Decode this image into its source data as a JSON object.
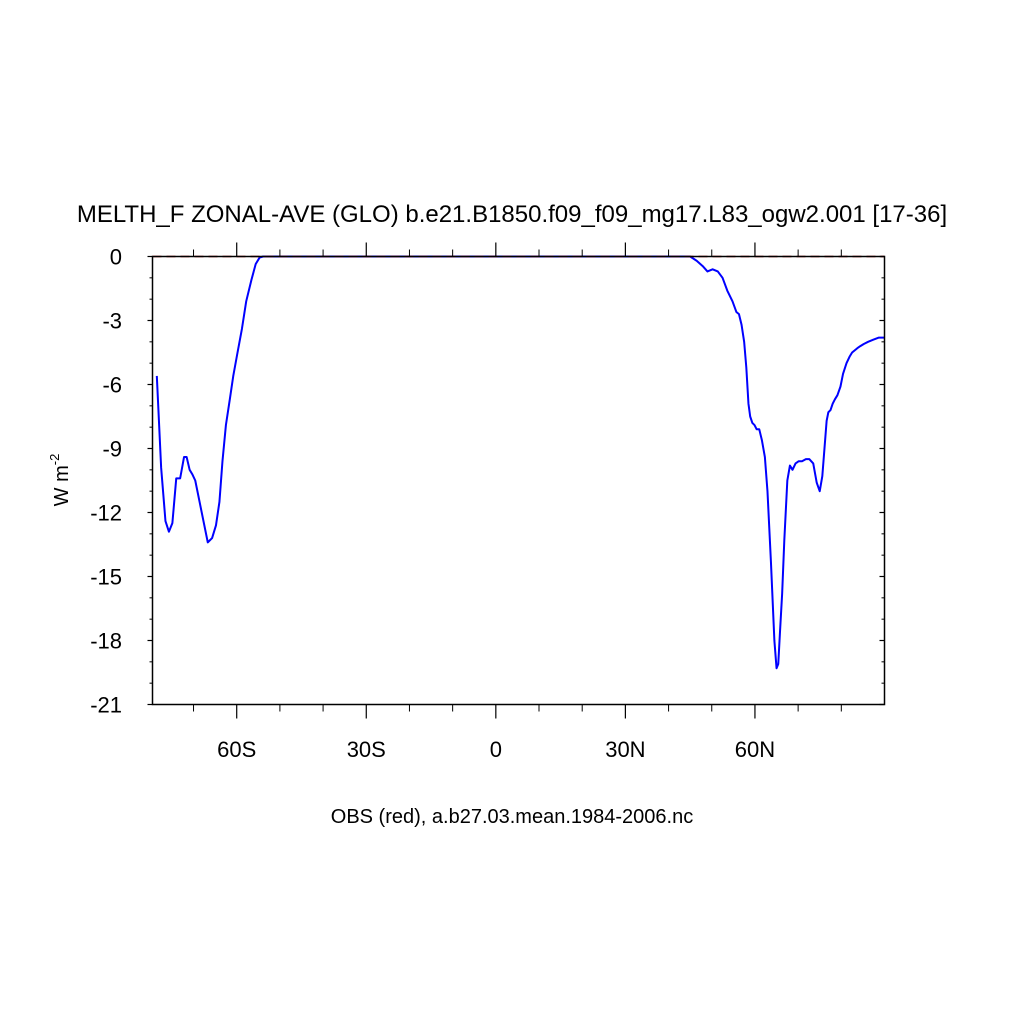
{
  "chart_data": {
    "type": "line",
    "title": "MELTH_F ZONAL-AVE (GLO) b.e21.B1850.f09_f09_mg17.L83_ogw2.001 [17-36]",
    "xlabel": "OBS (red), a.b27.03.mean.1984-2006.nc",
    "ylabel": "W m",
    "ylabel_superscript": "-2",
    "xlim": [
      -79.5,
      90
    ],
    "ylim": [
      -21,
      0
    ],
    "x_ticks": [
      {
        "value": -60,
        "label": "60S"
      },
      {
        "value": -30,
        "label": "30S"
      },
      {
        "value": 0,
        "label": "0"
      },
      {
        "value": 30,
        "label": "30N"
      },
      {
        "value": 60,
        "label": "60N"
      }
    ],
    "y_ticks": [
      {
        "value": 0,
        "label": "0"
      },
      {
        "value": -3,
        "label": "-3"
      },
      {
        "value": -6,
        "label": "-6"
      },
      {
        "value": -9,
        "label": "-9"
      },
      {
        "value": -12,
        "label": "-12"
      },
      {
        "value": -15,
        "label": "-15"
      },
      {
        "value": -18,
        "label": "-18"
      },
      {
        "value": -21,
        "label": "-21"
      }
    ],
    "series": [
      {
        "color": "#0000ff",
        "dashed": false,
        "x": [
          -78.5,
          -77.5,
          -76.5,
          -75.7,
          -74.9,
          -74.0,
          -73.1,
          -72.2,
          -71.6,
          -70.9,
          -70.3,
          -69.6,
          -68.5,
          -67.8,
          -66.7,
          -65.7,
          -64.8,
          -64.0,
          -63.3,
          -62.5,
          -61.6,
          -60.8,
          -59.9,
          -58.8,
          -57.8,
          -56.6,
          -55.6,
          -54.7,
          -53.9,
          -53.0,
          -52.0,
          -50.0,
          -40.0,
          -20.0,
          0.0,
          20.0,
          40.0,
          45.0,
          46.5,
          47.9,
          49.0,
          50.2,
          51.4,
          52.5,
          53.6,
          54.8,
          55.7,
          56.3,
          56.9,
          57.5,
          58.0,
          58.5,
          58.9,
          59.4,
          59.9,
          60.4,
          61.0,
          61.6,
          62.3,
          62.9,
          63.7,
          64.5,
          65.0,
          65.4,
          65.8,
          66.3,
          66.8,
          67.5,
          68.1,
          68.7,
          69.4,
          70.1,
          70.9,
          71.8,
          72.6,
          73.5,
          74.3,
          75.0,
          75.6,
          76.1,
          76.6,
          77.0,
          77.5,
          78.0,
          78.5,
          79.1,
          79.8,
          80.4,
          81.2,
          81.9,
          82.5,
          83.1,
          83.7,
          84.4,
          85.2,
          86.2,
          87.4,
          88.7,
          90.0
        ],
        "y": [
          -5.6,
          -9.9,
          -12.4,
          -12.9,
          -12.5,
          -10.4,
          -10.4,
          -9.4,
          -9.4,
          -10.0,
          -10.2,
          -10.5,
          -11.6,
          -12.3,
          -13.4,
          -13.2,
          -12.6,
          -11.5,
          -9.6,
          -7.9,
          -6.7,
          -5.6,
          -4.6,
          -3.4,
          -2.1,
          -1.1,
          -0.35,
          -0.05,
          0,
          0,
          0,
          0,
          0,
          0,
          0,
          0,
          0,
          0,
          -0.2,
          -0.45,
          -0.7,
          -0.6,
          -0.7,
          -1.0,
          -1.6,
          -2.1,
          -2.6,
          -2.7,
          -3.2,
          -4.0,
          -5.2,
          -6.9,
          -7.5,
          -7.8,
          -7.9,
          -8.1,
          -8.1,
          -8.6,
          -9.4,
          -11.0,
          -14.3,
          -18.0,
          -19.3,
          -19.1,
          -17.6,
          -15.8,
          -13.3,
          -10.5,
          -9.8,
          -10.0,
          -9.7,
          -9.6,
          -9.6,
          -9.5,
          -9.5,
          -9.7,
          -10.6,
          -11.0,
          -10.3,
          -9.0,
          -7.7,
          -7.3,
          -7.2,
          -6.9,
          -6.7,
          -6.5,
          -6.1,
          -5.5,
          -5.0,
          -4.7,
          -4.5,
          -4.4,
          -4.3,
          -4.2,
          -4.1,
          -4.0,
          -3.9,
          -3.8,
          -3.8
        ]
      },
      {
        "color": "#cc0000",
        "dashed": true,
        "x": [
          -79.5,
          90
        ],
        "y": [
          0,
          0
        ]
      }
    ]
  }
}
